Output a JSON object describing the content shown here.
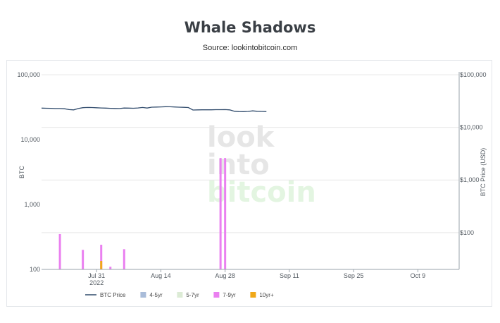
{
  "header": {
    "title": "Whale Shadows",
    "subtitle": "Source: lookintobitcoin.com"
  },
  "watermark": {
    "line1": "look",
    "line2": "into",
    "line3": "bitcoin"
  },
  "chart_data": {
    "type": "bar",
    "title": "Whale Shadows",
    "subtitle": "Source: lookintobitcoin.com",
    "xlabel": "",
    "ylabel": "BTC",
    "y2label": "BTC Price (USD)",
    "yscale": "log",
    "ylim": [
      100,
      100000
    ],
    "y2lim": [
      20,
      100000
    ],
    "xlim": [
      "2022-07-19",
      "2022-10-18"
    ],
    "x_ticks": [
      {
        "date": "2022-07-31",
        "label": "Jul 31",
        "sublabel": "2022"
      },
      {
        "date": "2022-08-14",
        "label": "Aug 14",
        "sublabel": ""
      },
      {
        "date": "2022-08-28",
        "label": "Aug 28",
        "sublabel": ""
      },
      {
        "date": "2022-09-11",
        "label": "Sep 11",
        "sublabel": ""
      },
      {
        "date": "2022-09-25",
        "label": "Sep 25",
        "sublabel": ""
      },
      {
        "date": "2022-10-09",
        "label": "Oct 9",
        "sublabel": ""
      }
    ],
    "y_ticks": [
      {
        "value": 100,
        "label": "100"
      },
      {
        "value": 1000,
        "label": "1,000"
      },
      {
        "value": 10000,
        "label": "10,000"
      },
      {
        "value": 100000,
        "label": "100,000"
      }
    ],
    "y2_ticks": [
      {
        "value": 100,
        "label": "$100"
      },
      {
        "value": 1000,
        "label": "$1,000"
      },
      {
        "value": 10000,
        "label": "$10,000"
      },
      {
        "value": 100000,
        "label": "$100,000"
      }
    ],
    "grid": true,
    "legend_position": "bottom-left",
    "series": [
      {
        "name": "BTC Price",
        "kind": "line",
        "axis": "right",
        "color": "#2f4a6b",
        "points": [
          [
            "2022-07-19",
            23200
          ],
          [
            "2022-07-20",
            23100
          ],
          [
            "2022-07-21",
            23000
          ],
          [
            "2022-07-22",
            22800
          ],
          [
            "2022-07-23",
            22800
          ],
          [
            "2022-07-24",
            22600
          ],
          [
            "2022-07-25",
            21800
          ],
          [
            "2022-07-26",
            21500
          ],
          [
            "2022-07-27",
            22800
          ],
          [
            "2022-07-28",
            23700
          ],
          [
            "2022-07-29",
            23900
          ],
          [
            "2022-07-30",
            23800
          ],
          [
            "2022-07-31",
            23600
          ],
          [
            "2022-08-01",
            23400
          ],
          [
            "2022-08-02",
            23200
          ],
          [
            "2022-08-03",
            23000
          ],
          [
            "2022-08-04",
            22900
          ],
          [
            "2022-08-05",
            22800
          ],
          [
            "2022-08-06",
            23300
          ],
          [
            "2022-08-07",
            23200
          ],
          [
            "2022-08-08",
            23100
          ],
          [
            "2022-08-09",
            23400
          ],
          [
            "2022-08-10",
            23900
          ],
          [
            "2022-08-11",
            23300
          ],
          [
            "2022-08-12",
            24200
          ],
          [
            "2022-08-13",
            24300
          ],
          [
            "2022-08-14",
            24500
          ],
          [
            "2022-08-15",
            24700
          ],
          [
            "2022-08-16",
            24600
          ],
          [
            "2022-08-17",
            24400
          ],
          [
            "2022-08-18",
            24200
          ],
          [
            "2022-08-19",
            24000
          ],
          [
            "2022-08-20",
            23800
          ],
          [
            "2022-08-21",
            21400
          ],
          [
            "2022-08-22",
            21500
          ],
          [
            "2022-08-23",
            21600
          ],
          [
            "2022-08-24",
            21600
          ],
          [
            "2022-08-25",
            21600
          ],
          [
            "2022-08-26",
            21700
          ],
          [
            "2022-08-27",
            21700
          ],
          [
            "2022-08-28",
            21800
          ],
          [
            "2022-08-29",
            21500
          ],
          [
            "2022-08-30",
            20300
          ],
          [
            "2022-08-31",
            20000
          ],
          [
            "2022-09-01",
            19900
          ],
          [
            "2022-09-02",
            20100
          ],
          [
            "2022-09-03",
            20600
          ],
          [
            "2022-09-04",
            20200
          ],
          [
            "2022-09-05",
            20100
          ],
          [
            "2022-09-06",
            20000
          ]
        ]
      },
      {
        "name": "4-5yr",
        "kind": "bar",
        "axis": "left",
        "color": "#a9bcd9",
        "points": []
      },
      {
        "name": "5-7yr",
        "kind": "bar",
        "axis": "left",
        "color": "#dcebd5",
        "points": []
      },
      {
        "name": "7-9yr",
        "kind": "bar",
        "axis": "left",
        "color": "#ea80f0",
        "points": [
          [
            "2022-07-23",
            350
          ],
          [
            "2022-07-28",
            200
          ],
          [
            "2022-08-01",
            240
          ],
          [
            "2022-08-03",
            110
          ],
          [
            "2022-08-06",
            205
          ],
          [
            "2022-08-27",
            5200
          ],
          [
            "2022-08-28",
            5200
          ]
        ]
      },
      {
        "name": "10yr+",
        "kind": "bar",
        "axis": "left",
        "color": "#f0a818",
        "points": [
          [
            "2022-08-01",
            135
          ]
        ]
      }
    ]
  }
}
